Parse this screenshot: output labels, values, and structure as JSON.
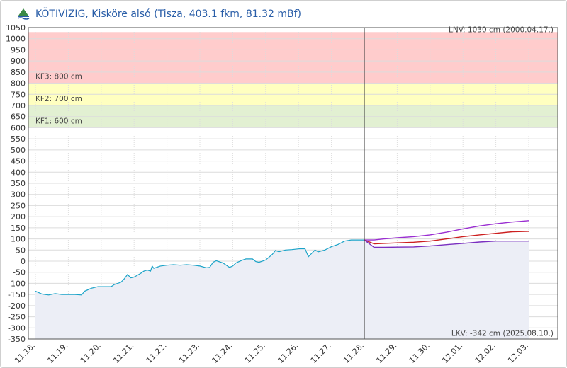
{
  "header": {
    "title": "KÖTIVIZIG, Kisköre alsó (Tisza, 403.1 fkm, 81.32 mBf)"
  },
  "chart_data": {
    "type": "line",
    "title": "KÖTIVIZIG, Kisköre alsó (Tisza, 403.1 fkm, 81.32 mBf)",
    "ylim": [
      -350,
      1050
    ],
    "y_ticks": [
      1050,
      1000,
      950,
      900,
      850,
      800,
      750,
      700,
      650,
      600,
      550,
      500,
      450,
      400,
      350,
      300,
      250,
      200,
      150,
      100,
      50,
      0,
      -50,
      -100,
      -150,
      -200,
      -250,
      -300,
      -350
    ],
    "x_ticks": [
      "11.18.",
      "11.19.",
      "11.20.",
      "11.21.",
      "11.22.",
      "11.23.",
      "11.24.",
      "11.25.",
      "11.26.",
      "11.27.",
      "11.28.",
      "11.29.",
      "11.30.",
      "12.01.",
      "12.02.",
      "12.03."
    ],
    "grid": true,
    "bands": [
      {
        "label": "KF3: 800 cm",
        "from": 800,
        "to": 1030,
        "color": "#ffcccc"
      },
      {
        "label": "KF2: 700 cm",
        "from": 700,
        "to": 800,
        "color": "#ffffc0"
      },
      {
        "label": "KF1: 600 cm",
        "from": 600,
        "to": 700,
        "color": "#e2f0d2"
      }
    ],
    "reference_lines": [
      {
        "label": "LNV: 1030 cm (2000.04.17.)",
        "value": 1030
      },
      {
        "label": "LKV: -342 cm (2025.08.10.)",
        "value": -342
      }
    ],
    "now_marker": 10,
    "series": [
      {
        "role": "observed",
        "color": "#1aa3c8",
        "points": [
          [
            0,
            -135
          ],
          [
            0.2,
            -148
          ],
          [
            0.4,
            -152
          ],
          [
            0.6,
            -146
          ],
          [
            0.8,
            -150
          ],
          [
            1.0,
            -150
          ],
          [
            1.2,
            -150
          ],
          [
            1.4,
            -152
          ],
          [
            1.5,
            -135
          ],
          [
            1.7,
            -122
          ],
          [
            1.9,
            -115
          ],
          [
            2.1,
            -115
          ],
          [
            2.3,
            -115
          ],
          [
            2.4,
            -105
          ],
          [
            2.6,
            -95
          ],
          [
            2.7,
            -80
          ],
          [
            2.8,
            -60
          ],
          [
            2.9,
            -75
          ],
          [
            3.0,
            -72
          ],
          [
            3.2,
            -55
          ],
          [
            3.3,
            -45
          ],
          [
            3.4,
            -40
          ],
          [
            3.5,
            -45
          ],
          [
            3.55,
            -22
          ],
          [
            3.6,
            -32
          ],
          [
            3.8,
            -22
          ],
          [
            4.0,
            -18
          ],
          [
            4.2,
            -16
          ],
          [
            4.4,
            -18
          ],
          [
            4.6,
            -16
          ],
          [
            4.8,
            -18
          ],
          [
            5.0,
            -22
          ],
          [
            5.2,
            -30
          ],
          [
            5.3,
            -28
          ],
          [
            5.4,
            -5
          ],
          [
            5.5,
            2
          ],
          [
            5.7,
            -8
          ],
          [
            5.9,
            -28
          ],
          [
            6.0,
            -22
          ],
          [
            6.1,
            -8
          ],
          [
            6.3,
            5
          ],
          [
            6.4,
            10
          ],
          [
            6.6,
            10
          ],
          [
            6.7,
            -2
          ],
          [
            6.8,
            -5
          ],
          [
            7.0,
            5
          ],
          [
            7.2,
            30
          ],
          [
            7.3,
            48
          ],
          [
            7.4,
            42
          ],
          [
            7.6,
            50
          ],
          [
            7.8,
            52
          ],
          [
            8.0,
            55
          ],
          [
            8.1,
            56
          ],
          [
            8.2,
            55
          ],
          [
            8.3,
            20
          ],
          [
            8.4,
            35
          ],
          [
            8.5,
            50
          ],
          [
            8.6,
            42
          ],
          [
            8.8,
            50
          ],
          [
            9.0,
            65
          ],
          [
            9.2,
            75
          ],
          [
            9.4,
            90
          ],
          [
            9.6,
            95
          ],
          [
            9.8,
            95
          ],
          [
            10.0,
            95
          ]
        ]
      },
      {
        "role": "forecast-high",
        "color": "#9a2ed1",
        "points": [
          [
            10.0,
            95
          ],
          [
            10.3,
            95
          ],
          [
            10.6,
            100
          ],
          [
            11.0,
            105
          ],
          [
            11.5,
            110
          ],
          [
            12.0,
            118
          ],
          [
            12.5,
            130
          ],
          [
            13.0,
            145
          ],
          [
            13.5,
            158
          ],
          [
            14.0,
            168
          ],
          [
            14.5,
            176
          ],
          [
            15.0,
            182
          ]
        ]
      },
      {
        "role": "forecast",
        "color": "#cc1f1f",
        "points": [
          [
            10.0,
            95
          ],
          [
            10.3,
            78
          ],
          [
            10.6,
            80
          ],
          [
            11.0,
            82
          ],
          [
            11.5,
            85
          ],
          [
            12.0,
            90
          ],
          [
            12.5,
            100
          ],
          [
            13.0,
            110
          ],
          [
            13.5,
            118
          ],
          [
            14.0,
            125
          ],
          [
            14.5,
            132
          ],
          [
            15.0,
            134
          ]
        ]
      },
      {
        "role": "forecast-low",
        "color": "#7a2fc0",
        "points": [
          [
            10.0,
            95
          ],
          [
            10.3,
            62
          ],
          [
            10.6,
            62
          ],
          [
            11.0,
            63
          ],
          [
            11.5,
            64
          ],
          [
            12.0,
            68
          ],
          [
            12.5,
            74
          ],
          [
            13.0,
            80
          ],
          [
            13.5,
            86
          ],
          [
            14.0,
            90
          ],
          [
            14.5,
            90
          ],
          [
            15.0,
            90
          ]
        ]
      }
    ],
    "colors": {
      "axis": "#555555",
      "grid": "#dcdcdc",
      "area_fill": "#eceef6",
      "now_line": "#333333"
    }
  }
}
